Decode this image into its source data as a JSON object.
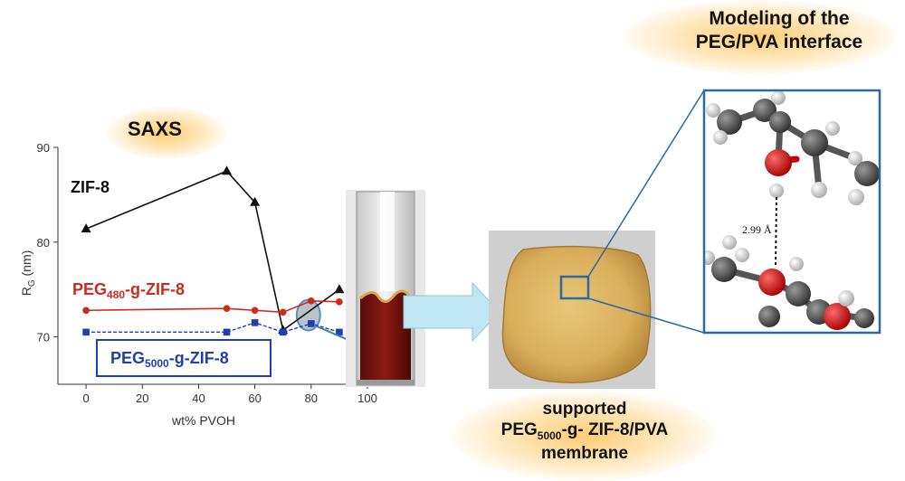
{
  "titles": {
    "saxs": "SAXS",
    "modeling_line1": "Modeling of the",
    "modeling_line2": "PEG/PVA interface",
    "membrane_line1": "supported",
    "membrane_line2_a": "PEG",
    "membrane_line2_sub": "5000",
    "membrane_line2_b": "-g- ZIF-8/PVA",
    "membrane_line3": "membrane"
  },
  "molecule": {
    "distance_label": "2.99 Å"
  },
  "colors": {
    "zif8": "#111111",
    "peg480": "#cc2a1f",
    "peg5000": "#1f3fb0",
    "frame": "#2a6aa0",
    "arrow": "#bfe6f2"
  },
  "chart_data": {
    "type": "line",
    "xlabel": "wt% PVOH",
    "ylabel_main": "R",
    "ylabel_sub": "G",
    "ylabel_unit": " (nm)",
    "xlim": [
      -10,
      100
    ],
    "ylim": [
      65,
      90
    ],
    "x_ticks": [
      0,
      20,
      40,
      60,
      80,
      100
    ],
    "y_ticks": [
      70,
      80,
      90
    ],
    "x_tick_labels": [
      "0",
      "20",
      "40",
      "60",
      "80",
      "100"
    ],
    "y_tick_labels": [
      "70",
      "80",
      "90"
    ],
    "series": [
      {
        "name": "ZIF-8",
        "marker": "triangle",
        "x": [
          0,
          50,
          60,
          70,
          90
        ],
        "y": [
          81.4,
          87.5,
          84.2,
          70.7,
          75.0
        ]
      },
      {
        "name_main": "PEG",
        "name_sub": "480",
        "name_rest": "-g-ZIF-8",
        "marker": "circle",
        "x": [
          0,
          50,
          60,
          70,
          80,
          90
        ],
        "y": [
          72.8,
          73.0,
          72.8,
          72.6,
          73.8,
          73.7
        ]
      },
      {
        "name_main": "PEG",
        "name_sub": "5000",
        "name_rest": "-g-ZIF-8",
        "marker": "square",
        "x": [
          0,
          50,
          60,
          70,
          80,
          90
        ],
        "y": [
          70.5,
          70.5,
          71.5,
          70.5,
          71.4,
          70.5
        ]
      }
    ]
  }
}
